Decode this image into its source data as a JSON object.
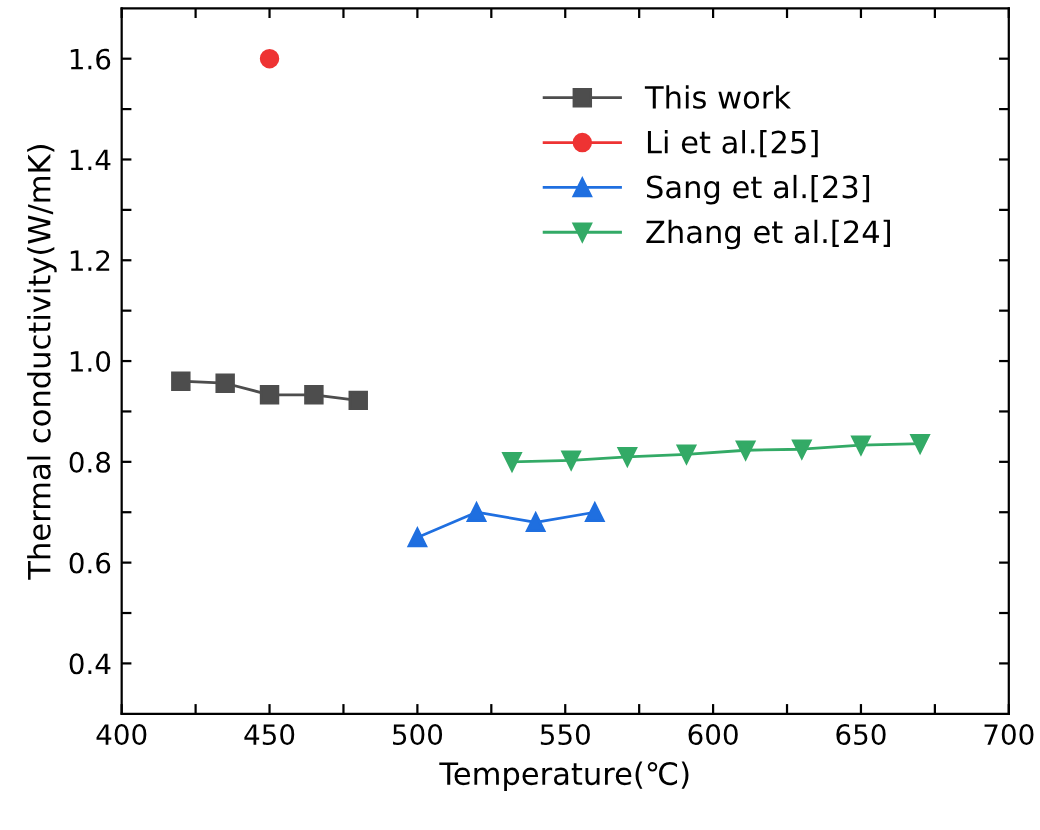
{
  "chart_data": {
    "type": "line",
    "xlabel": "Temperature(℃)",
    "ylabel": "Thermal conductivity(W/mK)",
    "xlim": [
      400,
      700
    ],
    "ylim": [
      0.3,
      1.7
    ],
    "xticks": [
      400,
      {
        "value": 425,
        "label": null
      },
      450,
      {
        "value": 475,
        "label": null
      },
      500,
      {
        "value": 525,
        "label": null
      },
      550,
      {
        "value": 575,
        "label": null
      },
      600,
      {
        "value": 625,
        "label": null
      },
      650,
      {
        "value": 675,
        "label": null
      },
      700
    ],
    "yticks": [
      0.4,
      {
        "value": 0.5,
        "label": null
      },
      0.6,
      {
        "value": 0.7,
        "label": null
      },
      0.8,
      {
        "value": 0.9,
        "label": null
      },
      {
        "value": 1.0,
        "label": "1.0"
      },
      {
        "value": 1.1,
        "label": null
      },
      1.2,
      {
        "value": 1.3,
        "label": null
      },
      1.4,
      {
        "value": 1.5,
        "label": null
      },
      1.6
    ],
    "grid": false,
    "legend": "top right",
    "line_style": "solid",
    "series": [
      {
        "name": "This work",
        "color": "#4d4d4d",
        "marker": "square",
        "x": [
          420,
          435,
          450,
          465,
          480
        ],
        "values": [
          0.96,
          0.956,
          0.933,
          0.933,
          0.922
        ]
      },
      {
        "name": "Li et al.[25]",
        "color": "#ee3333",
        "marker": "circle",
        "x": [
          450
        ],
        "values": [
          1.6
        ]
      },
      {
        "name": "Sang et al.[23]",
        "color": "#1f6fe0",
        "marker": "triangle",
        "x": [
          500,
          520,
          540,
          560
        ],
        "values": [
          0.65,
          0.7,
          0.68,
          0.7
        ]
      },
      {
        "name": "Zhang et al.[24]",
        "color": "#33aa66",
        "marker": "triangle_down",
        "x": [
          532,
          552,
          571,
          591,
          611,
          630,
          650,
          670
        ],
        "values": [
          0.8,
          0.803,
          0.81,
          0.815,
          0.823,
          0.825,
          0.833,
          0.836
        ]
      }
    ]
  }
}
